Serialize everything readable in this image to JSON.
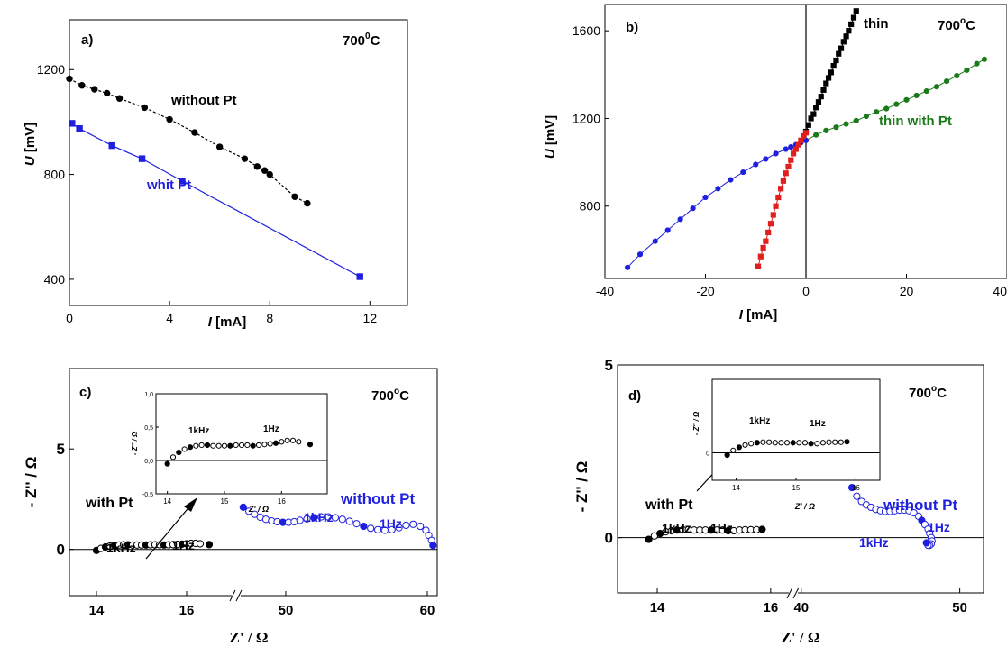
{
  "chart_data": [
    {
      "panel": "a",
      "type": "line",
      "panel_label": "a)",
      "temperature": "700",
      "temp_sup": "0",
      "temp_unit": "C",
      "xlabel_var": "I",
      "xlabel_unit": " [mA]",
      "ylabel_var": "U",
      "ylabel_unit": " [mV]",
      "xlim": [
        0,
        13.5
      ],
      "ylim": [
        300,
        1390
      ],
      "xticks": [
        "0",
        "4",
        "8",
        "12"
      ],
      "xtick_values": [
        0,
        4,
        8,
        12
      ],
      "yticks": [
        "400",
        "800",
        "1200"
      ],
      "ytick_values": [
        400,
        800,
        1200
      ],
      "series": [
        {
          "name": "without Pt",
          "color": "#000000",
          "marker": "circle",
          "dash": "3,2",
          "x": [
            0,
            0.5,
            1.0,
            1.5,
            2.0,
            3.0,
            4.0,
            5.0,
            6.0,
            7.0,
            7.5,
            7.8,
            8.0,
            9.0,
            9.5
          ],
          "y": [
            1165,
            1140,
            1125,
            1110,
            1090,
            1055,
            1010,
            960,
            905,
            860,
            830,
            815,
            800,
            715,
            690
          ]
        },
        {
          "name": "whit Pt",
          "color": "#1f1fe0",
          "marker": "square",
          "dash": "",
          "x": [
            0.1,
            0.4,
            1.7,
            2.9,
            4.5,
            11.6
          ],
          "y": [
            995,
            975,
            910,
            860,
            775,
            410
          ]
        }
      ]
    },
    {
      "panel": "b",
      "type": "line",
      "panel_label": "b)",
      "temperature": "700",
      "temp_sup": "o",
      "temp_unit": "C",
      "xlabel_var": "I",
      "xlabel_unit": " [mA]",
      "ylabel_var": "U",
      "ylabel_unit": " [mV]",
      "xlim": [
        -40,
        40
      ],
      "ylim": [
        470,
        1720
      ],
      "xticks": [
        "-40",
        "-20",
        "0",
        "20",
        "40"
      ],
      "xtick_values": [
        -40,
        -20,
        0,
        20,
        40
      ],
      "yticks": [
        "800",
        "1200",
        "1600"
      ],
      "ytick_values": [
        800,
        1200,
        1600
      ],
      "series": [
        {
          "name": "thin",
          "color": "#000000",
          "marker": "square",
          "x": [
            0,
            0.5,
            1,
            1.5,
            2,
            2.5,
            3,
            3.5,
            4,
            4.5,
            5,
            5.5,
            6,
            6.5,
            7,
            7.5,
            8,
            8.5,
            9,
            9.5,
            10
          ],
          "y": [
            1140,
            1170,
            1200,
            1220,
            1250,
            1275,
            1300,
            1330,
            1360,
            1385,
            1410,
            1440,
            1465,
            1495,
            1520,
            1550,
            1575,
            1600,
            1630,
            1660,
            1690
          ]
        },
        {
          "name": "thin with Pt",
          "color": "#1a7a1a",
          "marker": "circle",
          "x": [
            0,
            2,
            4,
            6,
            8,
            10,
            12,
            14,
            16,
            18,
            20,
            22,
            24,
            26,
            28,
            30,
            32,
            34,
            35.5
          ],
          "y": [
            1100,
            1125,
            1145,
            1160,
            1175,
            1190,
            1210,
            1230,
            1245,
            1265,
            1285,
            1305,
            1325,
            1345,
            1370,
            1395,
            1420,
            1450,
            1470
          ]
        },
        {
          "name": "",
          "color": "#1f1fe0",
          "marker": "circle",
          "x": [
            -35.5,
            -33,
            -30,
            -27.5,
            -25,
            -22.5,
            -20,
            -17.5,
            -15,
            -12.5,
            -10,
            -8,
            -6,
            -4,
            -3,
            -2,
            -1,
            0
          ],
          "y": [
            520,
            580,
            640,
            690,
            740,
            790,
            840,
            880,
            920,
            955,
            990,
            1015,
            1040,
            1060,
            1070,
            1080,
            1090,
            1100
          ]
        },
        {
          "name": "",
          "color": "#e01f1f",
          "marker": "square",
          "x": [
            -9.5,
            -9,
            -8.5,
            -8,
            -7.5,
            -7,
            -6.5,
            -6,
            -5.5,
            -5,
            -4.5,
            -4,
            -3.5,
            -3,
            -2.5,
            -2,
            -1.5,
            -1,
            -0.5,
            0
          ],
          "y": [
            525,
            570,
            610,
            640,
            680,
            720,
            760,
            800,
            840,
            880,
            915,
            950,
            980,
            1010,
            1040,
            1060,
            1080,
            1100,
            1120,
            1135
          ]
        }
      ]
    },
    {
      "panel": "c",
      "type": "scatter",
      "panel_label": "c)",
      "temperature": "700",
      "temp_sup": "o",
      "temp_unit": "C",
      "xlabel": "Z' / Ω",
      "ylabel": "- Z'' / Ω",
      "ylim": [
        -2.3,
        9
      ],
      "yticks": [
        "0",
        "5"
      ],
      "ytick_values": [
        0,
        5
      ],
      "x_segments": [
        {
          "range": [
            13.4,
            17.1
          ],
          "ticks": [
            "14",
            "16"
          ],
          "tick_values": [
            14,
            16
          ]
        },
        {
          "range": [
            46.5,
            60.7
          ],
          "ticks": [
            "50",
            "60"
          ],
          "tick_values": [
            50,
            60
          ]
        }
      ],
      "series": [
        {
          "name": "with Pt",
          "color": "#000000",
          "segment": 0,
          "x": [
            14.0,
            14.1,
            14.2,
            14.3,
            14.4,
            14.5,
            14.6,
            14.7,
            14.8,
            14.9,
            15.0,
            15.1,
            15.2,
            15.3,
            15.4,
            15.5,
            15.6,
            15.7,
            15.8,
            15.9,
            16.0,
            16.1,
            16.2,
            16.3,
            16.5
          ],
          "y": [
            -0.05,
            0.05,
            0.12,
            0.17,
            0.2,
            0.22,
            0.23,
            0.23,
            0.22,
            0.22,
            0.22,
            0.22,
            0.23,
            0.23,
            0.23,
            0.22,
            0.23,
            0.24,
            0.25,
            0.26,
            0.28,
            0.3,
            0.3,
            0.28,
            0.24
          ],
          "filled": [
            true,
            false,
            true,
            false,
            true,
            false,
            false,
            true,
            false,
            false,
            false,
            true,
            false,
            false,
            false,
            true,
            false,
            false,
            false,
            true,
            false,
            false,
            false,
            false,
            true
          ]
        },
        {
          "name": "without Pt",
          "color": "#1f1fe0",
          "segment": 1,
          "x": [
            47.0,
            47.4,
            47.8,
            48.2,
            48.6,
            49.0,
            49.4,
            49.8,
            50.2,
            50.6,
            51.0,
            51.5,
            52.0,
            52.5,
            53.0,
            53.5,
            54.0,
            54.5,
            55.0,
            55.5,
            56.0,
            56.5,
            57.0,
            57.5,
            58.0,
            58.5,
            59.0,
            59.5,
            59.9,
            60.1,
            60.3,
            60.4
          ],
          "y": [
            2.1,
            1.9,
            1.75,
            1.6,
            1.5,
            1.42,
            1.38,
            1.35,
            1.35,
            1.38,
            1.45,
            1.52,
            1.58,
            1.62,
            1.62,
            1.58,
            1.5,
            1.4,
            1.28,
            1.15,
            1.05,
            0.98,
            0.95,
            0.98,
            1.08,
            1.2,
            1.25,
            1.15,
            0.95,
            0.7,
            0.45,
            0.2
          ],
          "filled": [
            true,
            false,
            false,
            false,
            false,
            false,
            false,
            true,
            false,
            false,
            false,
            false,
            true,
            false,
            false,
            false,
            false,
            false,
            false,
            true,
            false,
            false,
            false,
            false,
            false,
            false,
            false,
            false,
            false,
            false,
            false,
            true
          ]
        }
      ],
      "annotations": [
        {
          "text": "with Pt",
          "color": "#000000"
        },
        {
          "text": "without Pt",
          "color": "#1f1fe0"
        },
        {
          "text": "1kHz",
          "color": "#000000"
        },
        {
          "text": "1Hz",
          "color": "#000000"
        },
        {
          "text": "1kHz",
          "color": "#1f1fe0"
        },
        {
          "text": "1Hz",
          "color": "#1f1fe0"
        }
      ],
      "inset": {
        "xlabel": "Z' / Ω",
        "ylabel": "- Z'' / Ω",
        "xlim": [
          13.8,
          16.8
        ],
        "ylim": [
          -0.5,
          1.0
        ],
        "xticks": [
          "14",
          "15",
          "16"
        ],
        "xtick_values": [
          14,
          15,
          16
        ],
        "yticks": [
          "-0,5",
          "0,0",
          "0,5",
          "1,0"
        ],
        "ytick_values": [
          -0.5,
          0.0,
          0.5,
          1.0
        ],
        "annotations": [
          "1kHz",
          "1Hz"
        ]
      }
    },
    {
      "panel": "d",
      "type": "scatter",
      "panel_label": "d)",
      "temperature": "700",
      "temp_sup": "o",
      "temp_unit": "C",
      "xlabel": "Z' / Ω",
      "ylabel": "- Z'' / Ω",
      "ylim": [
        -1.6,
        5
      ],
      "yticks": [
        "0",
        "5"
      ],
      "ytick_values": [
        0,
        5
      ],
      "x_segments": [
        {
          "range": [
            13.3,
            16.4
          ],
          "ticks": [
            "14",
            "16"
          ],
          "tick_values": [
            14,
            16
          ]
        },
        {
          "range": [
            39.5,
            51.5
          ],
          "ticks": [
            "40",
            "50"
          ],
          "tick_values": [
            40,
            50
          ]
        }
      ],
      "series": [
        {
          "name": "with Pt",
          "color": "#000000",
          "segment": 0,
          "x": [
            13.85,
            13.95,
            14.05,
            14.15,
            14.25,
            14.35,
            14.45,
            14.55,
            14.65,
            14.75,
            14.85,
            14.95,
            15.05,
            15.15,
            15.25,
            15.35,
            15.45,
            15.55,
            15.65,
            15.75,
            15.85
          ],
          "y": [
            -0.05,
            0.05,
            0.12,
            0.17,
            0.2,
            0.22,
            0.23,
            0.23,
            0.22,
            0.22,
            0.22,
            0.22,
            0.22,
            0.22,
            0.2,
            0.2,
            0.22,
            0.23,
            0.23,
            0.23,
            0.24
          ],
          "filled": [
            true,
            false,
            true,
            false,
            false,
            true,
            false,
            false,
            false,
            false,
            false,
            true,
            false,
            false,
            true,
            false,
            false,
            false,
            false,
            false,
            true
          ]
        },
        {
          "name": "without Pt",
          "color": "#1f1fe0",
          "segment": 1,
          "x": [
            43.2,
            43.5,
            43.8,
            44.1,
            44.4,
            44.7,
            45.0,
            45.3,
            45.6,
            45.9,
            46.2,
            46.5,
            46.8,
            47.1,
            47.4,
            47.6,
            47.8,
            48.0,
            48.1,
            48.2,
            48.25,
            48.2,
            48.1,
            48.0,
            47.9
          ],
          "y": [
            1.45,
            1.2,
            1.05,
            0.95,
            0.88,
            0.82,
            0.78,
            0.76,
            0.76,
            0.78,
            0.8,
            0.8,
            0.78,
            0.72,
            0.62,
            0.5,
            0.38,
            0.25,
            0.12,
            0.0,
            -0.1,
            -0.18,
            -0.22,
            -0.22,
            -0.15
          ],
          "filled": [
            true,
            false,
            false,
            false,
            false,
            false,
            false,
            false,
            false,
            false,
            false,
            false,
            false,
            false,
            false,
            true,
            false,
            false,
            false,
            false,
            false,
            false,
            false,
            false,
            true
          ]
        }
      ],
      "annotations": [
        {
          "text": "with Pt",
          "color": "#000000"
        },
        {
          "text": "without Pt",
          "color": "#1f1fe0"
        },
        {
          "text": "1kHz",
          "color": "#000000"
        },
        {
          "text": "1Hz",
          "color": "#000000"
        },
        {
          "text": "1kHz",
          "color": "#1f1fe0"
        },
        {
          "text": "1Hz",
          "color": "#1f1fe0"
        }
      ],
      "inset": {
        "xlabel": "Z' / Ω",
        "ylabel": "- Z'' / Ω",
        "xlim": [
          13.6,
          16.4
        ],
        "ylim": [
          -0.6,
          1.6
        ],
        "xticks": [
          "14",
          "15",
          "16"
        ],
        "xtick_values": [
          14,
          15,
          16
        ],
        "yticks": [
          "0"
        ],
        "ytick_values": [
          0
        ],
        "annotations": [
          "1kHz",
          "1Hz"
        ]
      }
    }
  ]
}
